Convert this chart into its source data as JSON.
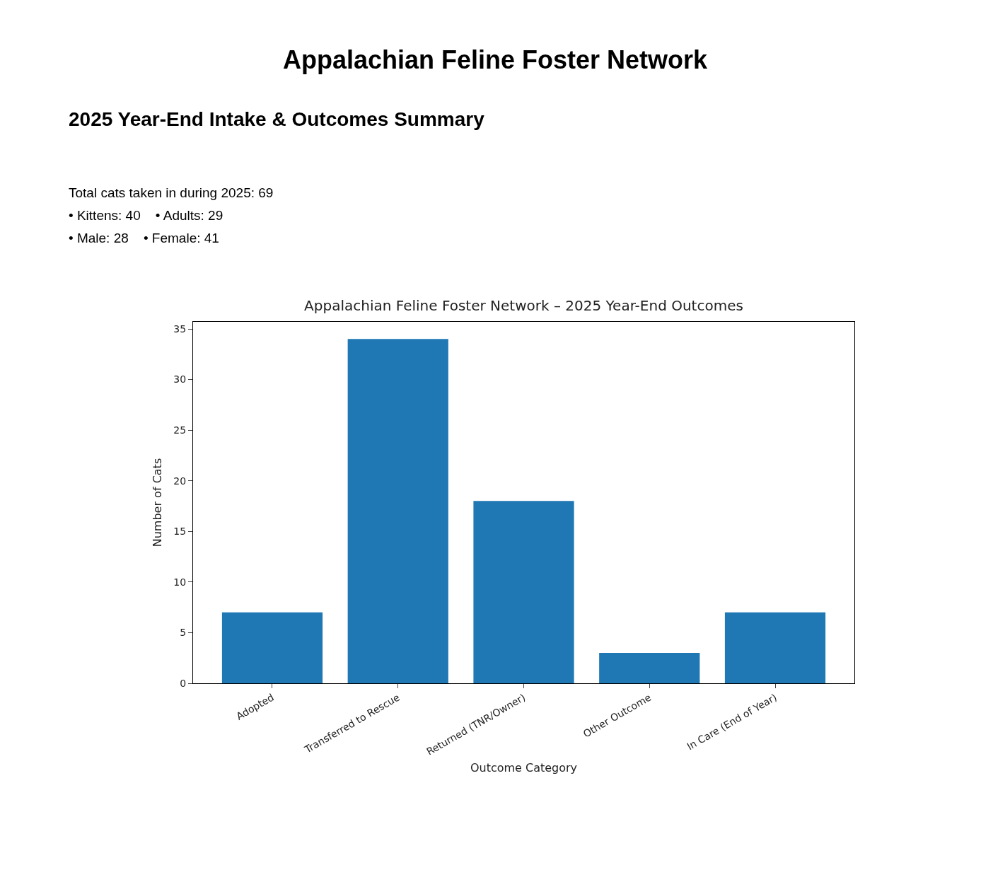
{
  "chart_data": {
    "type": "bar",
    "title": "Appalachian Feline Foster Network – 2025 Year-End Outcomes",
    "xlabel": "Outcome Category",
    "ylabel": "Number of Cats",
    "categories": [
      "Adopted",
      "Transferred to Rescue",
      "Returned (TNR/Owner)",
      "Other Outcome",
      "In Care (End of Year)"
    ],
    "values": [
      7,
      34,
      18,
      3,
      7
    ],
    "color": "#1f77b4",
    "ylim": [
      0,
      35.7
    ],
    "yticks": [
      0,
      5,
      10,
      15,
      20,
      25,
      30,
      35
    ],
    "legend": false,
    "annotations": [
      "Appalachian Feline Foster Network",
      "2025 Year-End Intake & Outcomes Summary",
      "Total cats taken in during 2025: 69",
      "• Kittens: 40    • Adults: 29",
      "• Male: 28    • Female: 41"
    ]
  }
}
